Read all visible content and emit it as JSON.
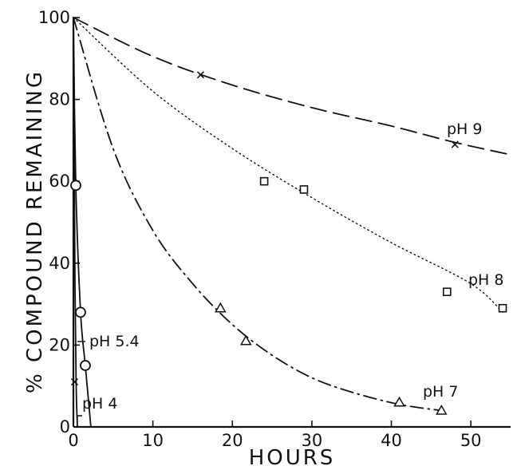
{
  "chart_data": {
    "type": "line",
    "title": "",
    "xlabel": "HOURS",
    "ylabel": "% COMPOUND REMAINING",
    "xlim": [
      0,
      55
    ],
    "ylim": [
      0,
      100
    ],
    "xticks": [
      "0",
      "10",
      "20",
      "30",
      "40",
      "50"
    ],
    "yticks": [
      "0",
      "20",
      "40",
      "60",
      "80",
      "100"
    ],
    "grid": false,
    "series": [
      {
        "name": "pH 9",
        "marker": "x",
        "linestyle": "dashed",
        "points": [
          [
            16,
            86
          ],
          [
            48,
            69
          ]
        ],
        "curve": [
          [
            0,
            100
          ],
          [
            10,
            90.5
          ],
          [
            20,
            83.5
          ],
          [
            30,
            78
          ],
          [
            40,
            73.5
          ],
          [
            48,
            69.5
          ],
          [
            55,
            66.5
          ]
        ]
      },
      {
        "name": "pH 8",
        "marker": "square",
        "linestyle": "dotted",
        "points": [
          [
            24,
            60
          ],
          [
            29,
            58
          ],
          [
            47,
            33
          ],
          [
            54,
            29
          ]
        ],
        "curve": [
          [
            0,
            100
          ],
          [
            10,
            82
          ],
          [
            20,
            68
          ],
          [
            30,
            56
          ],
          [
            40,
            45
          ],
          [
            50,
            35
          ],
          [
            54,
            28
          ]
        ]
      },
      {
        "name": "pH 7",
        "marker": "triangle",
        "linestyle": "dashdot",
        "points": [
          [
            18.5,
            29
          ],
          [
            21.7,
            21
          ],
          [
            41,
            6
          ],
          [
            46.3,
            4
          ]
        ],
        "curve": [
          [
            0,
            100
          ],
          [
            5,
            68
          ],
          [
            10,
            48
          ],
          [
            15,
            35
          ],
          [
            20,
            25
          ],
          [
            25,
            17.5
          ],
          [
            30,
            12
          ],
          [
            35,
            8.5
          ],
          [
            41,
            5.5
          ],
          [
            46.3,
            4
          ]
        ]
      },
      {
        "name": "pH 5.4",
        "marker": "circle",
        "linestyle": "solid",
        "points": [
          [
            0.3,
            59
          ],
          [
            0.9,
            28
          ],
          [
            1.5,
            15
          ]
        ],
        "curve": [
          [
            0,
            100
          ],
          [
            0.3,
            59
          ],
          [
            0.9,
            28
          ],
          [
            1.5,
            15
          ],
          [
            2.2,
            0
          ]
        ]
      },
      {
        "name": "pH 4",
        "marker": "x",
        "linestyle": "solid",
        "points": [
          [
            0.15,
            11
          ]
        ],
        "curve": [
          [
            0,
            100
          ],
          [
            0.2,
            35
          ],
          [
            0.35,
            10
          ],
          [
            0.5,
            0
          ]
        ]
      }
    ]
  }
}
